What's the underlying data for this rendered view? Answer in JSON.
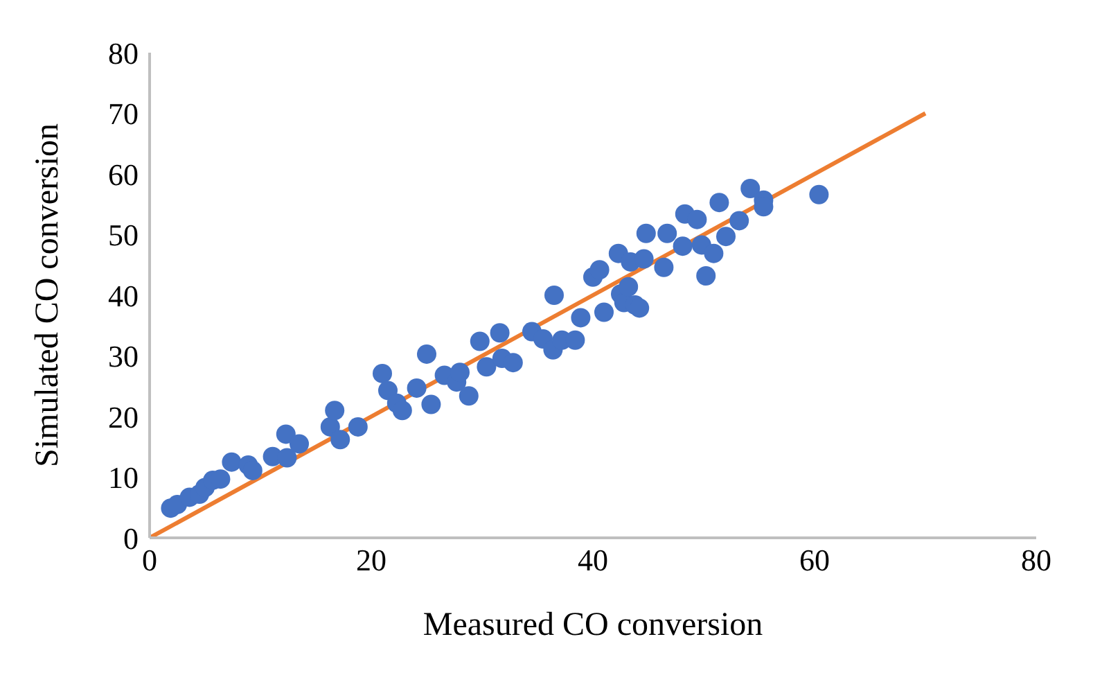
{
  "chart_data": {
    "type": "scatter",
    "xlabel": "Measured CO conversion",
    "ylabel": "Simulated CO conversion",
    "xlim": [
      0,
      80
    ],
    "xticks": [
      0,
      20,
      40,
      60,
      80
    ],
    "ylim": [
      0,
      80
    ],
    "yticks": [
      0,
      10,
      20,
      30,
      40,
      50,
      60,
      70,
      80
    ],
    "grid": false,
    "legend": false,
    "series": [
      {
        "color": "#4472c4",
        "marker": "circle",
        "x": [
          1.9,
          2.5,
          3.6,
          4.5,
          5.0,
          5.7,
          6.4,
          7.4,
          8.9,
          9.3,
          11.1,
          12.3,
          12.4,
          13.5,
          16.3,
          16.7,
          17.2,
          18.8,
          21.0,
          21.5,
          22.3,
          22.8,
          24.1,
          25.0,
          25.4,
          26.6,
          27.7,
          28.0,
          28.8,
          29.8,
          30.4,
          31.6,
          31.8,
          32.8,
          34.5,
          35.5,
          36.4,
          36.5,
          37.2,
          38.4,
          38.9,
          40.0,
          40.6,
          41.0,
          42.3,
          42.5,
          42.8,
          43.2,
          43.4,
          43.8,
          44.2,
          44.6,
          44.8,
          46.4,
          46.7,
          48.1,
          48.3,
          49.4,
          49.8,
          50.2,
          50.9,
          51.4,
          52.0,
          53.2,
          54.2,
          55.4,
          55.4,
          60.4
        ],
        "values": [
          4.9,
          5.5,
          6.7,
          7.2,
          8.3,
          9.5,
          9.7,
          12.5,
          12.0,
          11.1,
          13.4,
          17.1,
          13.2,
          15.5,
          18.3,
          21.0,
          16.2,
          18.3,
          27.1,
          24.3,
          22.2,
          21.0,
          24.7,
          30.3,
          22.0,
          26.8,
          25.7,
          27.3,
          23.4,
          32.4,
          28.2,
          33.8,
          29.6,
          28.9,
          34.0,
          32.8,
          31.0,
          40.0,
          32.6,
          32.6,
          36.3,
          43.0,
          44.2,
          37.2,
          46.9,
          40.2,
          38.8,
          41.4,
          45.5,
          38.4,
          37.9,
          46.0,
          50.2,
          44.6,
          50.2,
          48.1,
          53.4,
          52.5,
          48.3,
          43.2,
          46.9,
          55.3,
          49.7,
          52.3,
          57.6,
          55.7,
          54.6,
          56.6
        ]
      },
      {
        "type": "line",
        "color": "#ed7d31",
        "marker": "none",
        "line_style": "solid",
        "x": [
          0,
          70
        ],
        "values": [
          0,
          70
        ]
      }
    ]
  }
}
